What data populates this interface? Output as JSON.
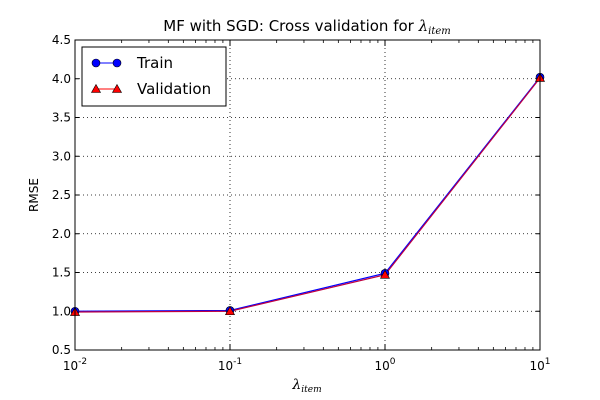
{
  "chart_data": {
    "type": "line",
    "title_prefix": "MF with SGD: Cross validation for ",
    "title_symbol": "λ",
    "title_subscript": "item",
    "xlabel_symbol": "λ",
    "xlabel_subscript": "item",
    "ylabel": "RMSE",
    "x_scale": "log",
    "xlim": [
      0.01,
      10
    ],
    "ylim": [
      0.5,
      4.5
    ],
    "x": [
      0.01,
      0.1,
      1,
      10
    ],
    "x_tick_labels": [
      {
        "base": "10",
        "exp": "-2"
      },
      {
        "base": "10",
        "exp": "-1"
      },
      {
        "base": "10",
        "exp": "0"
      },
      {
        "base": "10",
        "exp": "1"
      }
    ],
    "y_ticks": [
      "0.5",
      "1.0",
      "1.5",
      "2.0",
      "2.5",
      "3.0",
      "3.5",
      "4.0",
      "4.5"
    ],
    "grid": true,
    "legend_position": "top-left",
    "series": [
      {
        "name": "Train",
        "marker": "circle",
        "line_color": "#0000ff",
        "marker_color": "#0000ff",
        "values": [
          1.0,
          1.01,
          1.49,
          4.02
        ]
      },
      {
        "name": "Validation",
        "marker": "triangle",
        "line_color": "#ff0000",
        "marker_color": "#ff0000",
        "values": [
          0.99,
          1.0,
          1.47,
          4.01
        ]
      }
    ],
    "overlap_line_color": "#bf0040"
  }
}
